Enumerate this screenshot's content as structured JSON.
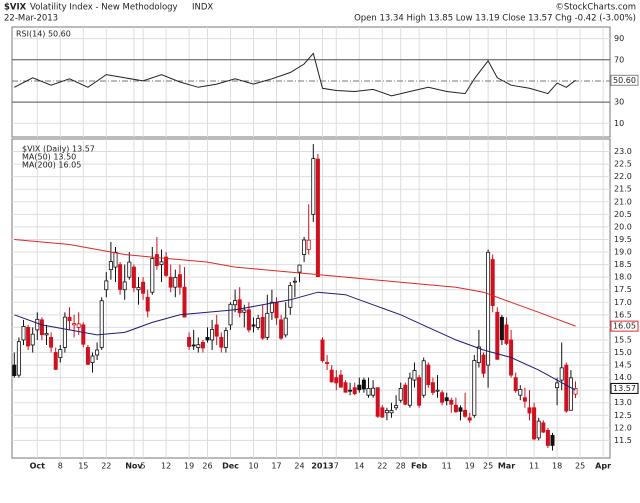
{
  "header": {
    "symbol": "$VIX",
    "name": "Volatility Index - New Methodology",
    "exchange": "INDX",
    "source": "©StockCharts.com",
    "date": "22-Mar-2013",
    "quote": "Open 13.34 High 13.85 Low 13.19 Close 13.57 Chg -0.42 (-3.00%)"
  },
  "chart_data": [
    {
      "type": "line",
      "ylim": [
        -3,
        101
      ],
      "yticks": [
        10,
        30,
        70,
        90
      ],
      "bands": [
        30,
        70
      ],
      "midline": 50,
      "series": [
        {
          "name": "RSI(14) 50.60",
          "color": "#222222",
          "x": [
            0,
            4,
            8,
            12,
            16,
            20,
            24,
            28,
            32,
            36,
            40,
            44,
            48,
            52,
            56,
            60,
            63,
            65,
            67,
            70,
            74,
            78,
            82,
            86,
            90,
            94,
            98,
            100,
            103,
            105,
            108,
            112,
            116,
            118,
            120,
            122
          ],
          "values": [
            44,
            53,
            46,
            52,
            44,
            56,
            53,
            50,
            56,
            49,
            44,
            47,
            52,
            47,
            52,
            58,
            66,
            76,
            43,
            41,
            40,
            42,
            36,
            40,
            44,
            40,
            38,
            52,
            69,
            53,
            46,
            43,
            38,
            48,
            44,
            50.6
          ],
          "last": {
            "value": 50.6,
            "label": "50.60"
          }
        }
      ]
    },
    {
      "type": "candlestick",
      "xlim": [
        -0.5,
        129.5
      ],
      "ylim": [
        10.8,
        23.5
      ],
      "yticks": [
        11.5,
        {
          "value": 12,
          "label": "12.0"
        },
        12.5,
        {
          "value": 13,
          "label": "13.0"
        },
        13.5,
        {
          "value": 14,
          "label": "14.0"
        },
        14.5,
        {
          "value": 15,
          "label": "15.0"
        },
        15.5,
        {
          "value": 16,
          "label": "16.0"
        },
        16.5,
        {
          "value": 17,
          "label": "17.0"
        },
        17.5,
        {
          "value": 18,
          "label": "18.0"
        },
        18.5,
        {
          "value": 19,
          "label": "19.0"
        },
        19.5,
        {
          "value": 20,
          "label": "20.0"
        },
        20.5,
        {
          "value": 21,
          "label": "21.0"
        },
        21.5,
        {
          "value": 22,
          "label": "22.0"
        },
        22.5,
        {
          "value": 23,
          "label": "23.0"
        }
      ],
      "xticks": [
        {
          "value": 5,
          "label": "Oct"
        },
        {
          "value": 10,
          "label": "8"
        },
        {
          "value": 15,
          "label": "15"
        },
        {
          "value": 20,
          "label": "22"
        },
        {
          "value": 26,
          "label": "Nov"
        },
        {
          "value": 28,
          "label": "5"
        },
        {
          "value": 33,
          "label": "12"
        },
        {
          "value": 38,
          "label": "19"
        },
        {
          "value": 42,
          "label": "26"
        },
        {
          "value": 47,
          "label": "Dec"
        },
        {
          "value": 52,
          "label": "10"
        },
        {
          "value": 57,
          "label": "17"
        },
        {
          "value": 62,
          "label": "24"
        },
        {
          "value": 67,
          "label": "2013"
        },
        {
          "value": 70,
          "label": "7"
        },
        {
          "value": 75,
          "label": "14"
        },
        {
          "value": 80,
          "label": "22"
        },
        {
          "value": 84,
          "label": "28"
        },
        {
          "value": 88,
          "label": "Feb"
        },
        {
          "value": 94,
          "label": "11"
        },
        {
          "value": 99,
          "label": "19"
        },
        {
          "value": 103,
          "label": "25"
        },
        {
          "value": 107,
          "label": "Mar"
        },
        {
          "value": 113,
          "label": "11"
        },
        {
          "value": 118,
          "label": "18"
        },
        {
          "value": 123,
          "label": "25"
        },
        {
          "value": 128,
          "label": "Apr"
        }
      ],
      "candles": {
        "name": "$VIX (Daily) 13.57",
        "up_color": "#111111",
        "down_color": "#d0101e",
        "last": {
          "value": 13.57,
          "label": "13.57"
        },
        "open": [
          14.5,
          14.1,
          15.5,
          16.0,
          15.3,
          15.9,
          16.3,
          15.7,
          15.6,
          15.0,
          14.8,
          15.2,
          16.4,
          16.1,
          16.0,
          16.1,
          15.2,
          14.6,
          14.9,
          15.2,
          17.5,
          18.3,
          18.4,
          18.5,
          17.5,
          18.0,
          18.4,
          17.5,
          17.8,
          17.2,
          17.4,
          18.9,
          18.5,
          18.8,
          18.0,
          17.6,
          18.1,
          17.6,
          15.6,
          15.3,
          15.2,
          15.4,
          15.6,
          15.5,
          16.1,
          15.6,
          15.2,
          16.1,
          16.9,
          17.1,
          16.6,
          16.7,
          16.1,
          16.0,
          16.4,
          15.6,
          16.6,
          17.0,
          16.3,
          15.7,
          16.8,
          17.8,
          18.2,
          18.9,
          19.1,
          20.5,
          22.7,
          15.5,
          14.6,
          14.3,
          14.0,
          14.1,
          13.8,
          13.5,
          13.6,
          13.7,
          13.9,
          13.3,
          13.3,
          13.6,
          12.8,
          12.6,
          12.6,
          12.8,
          13.1,
          13.7,
          12.9,
          13.9,
          14.0,
          13.3,
          14.5,
          13.8,
          13.5,
          13.4,
          13.2,
          13.1,
          12.9,
          12.8,
          12.7,
          12.4,
          12.5,
          14.6,
          14.9,
          14.5,
          18.7,
          16.6,
          16.4,
          16.1,
          15.5,
          14.0,
          13.3,
          13.2,
          12.8,
          12.8,
          11.6,
          12.2,
          11.9,
          11.7,
          13.6,
          13.9,
          14.5,
          12.7,
          13.34
        ],
        "high": [
          15.0,
          15.6,
          16.3,
          16.1,
          16.0,
          16.6,
          16.4,
          16.1,
          15.8,
          15.2,
          15.3,
          16.6,
          16.8,
          16.5,
          16.6,
          16.2,
          15.3,
          15.0,
          15.4,
          17.2,
          18.2,
          19.4,
          19.2,
          18.6,
          18.5,
          19.0,
          18.5,
          18.0,
          18.0,
          17.5,
          19.2,
          19.6,
          19.1,
          19.0,
          18.5,
          18.3,
          18.5,
          18.4,
          15.8,
          15.9,
          15.6,
          15.5,
          16.0,
          16.3,
          16.5,
          15.8,
          16.0,
          17.0,
          17.5,
          17.6,
          16.9,
          17.0,
          16.4,
          16.5,
          16.9,
          17.3,
          17.5,
          17.2,
          16.5,
          17.0,
          17.8,
          18.0,
          18.5,
          19.6,
          20.9,
          23.3,
          22.9,
          15.6,
          14.9,
          14.5,
          14.3,
          14.3,
          13.9,
          13.8,
          13.8,
          14.0,
          14.0,
          14.0,
          13.9,
          13.6,
          12.9,
          12.8,
          13.0,
          13.3,
          13.8,
          13.8,
          14.2,
          14.6,
          14.1,
          14.8,
          14.6,
          14.0,
          14.1,
          13.5,
          13.4,
          13.2,
          13.2,
          12.9,
          13.4,
          12.6,
          14.9,
          15.9,
          15.0,
          19.1,
          18.9,
          16.8,
          16.5,
          16.4,
          15.9,
          14.2,
          13.7,
          13.6,
          13.5,
          13.0,
          12.4,
          12.3,
          12.0,
          11.8,
          14.0,
          15.4,
          14.6,
          14.3,
          13.85
        ],
        "low": [
          14.0,
          14.0,
          15.3,
          15.1,
          15.0,
          15.5,
          15.5,
          15.3,
          15.0,
          14.3,
          14.6,
          15.0,
          15.9,
          15.6,
          15.7,
          15.2,
          14.5,
          14.2,
          14.7,
          15.1,
          17.2,
          17.9,
          17.8,
          17.3,
          17.1,
          17.9,
          17.4,
          16.9,
          17.1,
          16.4,
          17.3,
          18.3,
          17.8,
          18.0,
          17.4,
          17.2,
          17.3,
          16.4,
          15.1,
          15.1,
          15.0,
          15.0,
          15.4,
          15.1,
          15.3,
          15.0,
          15.0,
          15.9,
          16.6,
          16.4,
          16.0,
          15.8,
          15.8,
          15.9,
          15.5,
          15.5,
          16.3,
          16.1,
          15.5,
          15.6,
          16.5,
          17.2,
          17.8,
          18.6,
          18.9,
          20.2,
          18.0,
          14.6,
          14.3,
          13.8,
          13.5,
          13.6,
          13.4,
          13.3,
          13.3,
          13.4,
          13.4,
          13.2,
          13.2,
          12.4,
          12.4,
          12.3,
          12.4,
          12.7,
          13.0,
          12.9,
          12.8,
          13.6,
          12.8,
          13.2,
          13.6,
          13.3,
          13.2,
          12.9,
          12.9,
          12.6,
          12.6,
          12.3,
          12.4,
          12.2,
          12.4,
          14.4,
          14.0,
          13.6,
          16.6,
          14.7,
          15.3,
          15.3,
          14.0,
          13.4,
          13.1,
          12.8,
          12.3,
          11.5,
          11.5,
          11.8,
          11.2,
          11.1,
          12.9,
          13.5,
          12.6,
          12.7,
          13.19
        ],
        "close": [
          14.08,
          15.43,
          16.04,
          15.26,
          15.73,
          16.32,
          15.71,
          15.76,
          15.21,
          14.33,
          15.12,
          16.41,
          16.27,
          16.15,
          16.14,
          15.33,
          14.53,
          14.86,
          15.1,
          17.06,
          17.85,
          18.62,
          18.99,
          17.51,
          17.81,
          18.6,
          17.58,
          17.59,
          17.36,
          16.65,
          18.74,
          18.46,
          18.61,
          18.07,
          17.6,
          17.99,
          17.6,
          16.41,
          15.24,
          15.27,
          15.31,
          15.18,
          15.5,
          15.92,
          15.65,
          15.21,
          15.87,
          16.92,
          17.07,
          16.58,
          16.69,
          15.9,
          16.05,
          16.35,
          15.57,
          16.56,
          17.0,
          16.38,
          15.57,
          16.37,
          17.67,
          17.84,
          18.48,
          19.48,
          19.47,
          22.72,
          18.02,
          14.68,
          14.56,
          13.83,
          13.79,
          13.62,
          13.42,
          13.49,
          13.36,
          13.52,
          13.55,
          13.57,
          13.58,
          12.46,
          12.43,
          12.69,
          12.69,
          12.89,
          13.57,
          12.94,
          13.98,
          14.28,
          12.9,
          14.67,
          13.72,
          13.41,
          13.5,
          13.02,
          13.08,
          12.94,
          12.64,
          12.66,
          12.46,
          12.31,
          14.68,
          15.22,
          14.17,
          18.99,
          16.87,
          14.73,
          15.51,
          15.36,
          14.1,
          13.48,
          13.53,
          13.06,
          12.59,
          11.56,
          12.27,
          11.83,
          11.3,
          11.3,
          13.79,
          14.39,
          12.67,
          13.99,
          13.57
        ]
      },
      "series": [
        {
          "name": "MA(50) 13.50",
          "color": "#1c1c7a",
          "x": [
            0,
            6,
            12,
            18,
            24,
            30,
            36,
            42,
            48,
            54,
            60,
            66,
            72,
            78,
            84,
            90,
            96,
            102,
            108,
            114,
            122
          ],
          "values": [
            16.5,
            16.1,
            15.9,
            15.7,
            15.8,
            16.2,
            16.5,
            16.6,
            16.7,
            16.9,
            17.1,
            17.4,
            17.3,
            16.9,
            16.5,
            16.0,
            15.5,
            15.1,
            14.8,
            14.3,
            13.5
          ]
        },
        {
          "name": "MA(200) 16.05",
          "color": "#e02828",
          "x": [
            0,
            6,
            12,
            18,
            24,
            30,
            36,
            42,
            48,
            54,
            60,
            66,
            72,
            78,
            84,
            90,
            96,
            102,
            108,
            114,
            122
          ],
          "values": [
            19.5,
            19.4,
            19.3,
            19.1,
            18.9,
            18.8,
            18.7,
            18.6,
            18.4,
            18.3,
            18.2,
            18.1,
            18.0,
            17.9,
            17.8,
            17.7,
            17.6,
            17.4,
            17.0,
            16.6,
            16.05
          ],
          "last": {
            "value": 16.05,
            "label": "16.05"
          }
        }
      ]
    }
  ]
}
